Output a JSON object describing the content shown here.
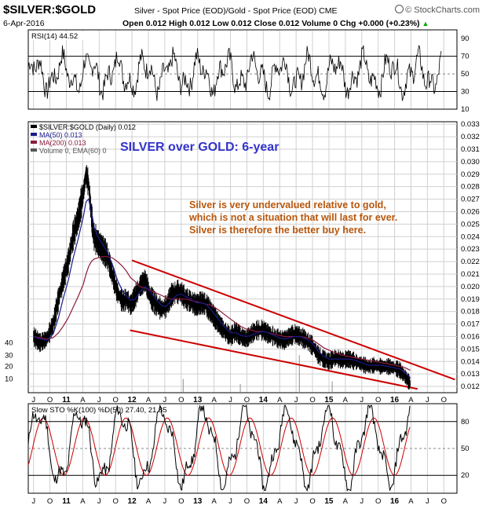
{
  "header": {
    "symbol": "$SILVER:$GOLD",
    "description": "Silver - Spot Price (EOD)/Gold - Spot Price (EOD) CME",
    "date": "6-Apr-2016",
    "ohlc": "Open 0.012  High 0.012  Low 0.012  Close 0.012  Volume 0  Chg +0.000 (+0.23%)",
    "ohlc_arrow": "▲",
    "brand": "© StockCharts.com"
  },
  "colors": {
    "price": "#000000",
    "ma50": "#1a1a8c",
    "ma200": "#8b1a3a",
    "trendline": "#cc0000",
    "annotation_title": "#3333cc",
    "annotation_body": "#b8560b",
    "volume": "#a0a0a0",
    "stoch_d": "#cc0000",
    "grid": "#d0d0d0"
  },
  "chart_data": [
    {
      "type": "line",
      "panel": "RSI",
      "legend": "RSI(14) 44.52",
      "ylim": [
        10,
        100
      ],
      "ticks": [
        10,
        30,
        50,
        70,
        90
      ],
      "reference_lines": [
        30,
        50,
        70
      ],
      "current": 44.52
    },
    {
      "type": "line",
      "panel": "price",
      "series": [
        {
          "name": "$SILVER:$GOLD (Daily) 0.012"
        },
        {
          "name": "MA(50) 0.013"
        },
        {
          "name": "MA(200) 0.013"
        },
        {
          "name": "Volume 0, EMA(60) 0"
        }
      ],
      "ylim": [
        0.0115,
        0.0332
      ],
      "right_ticks": [
        "0.033",
        "0.032",
        "0.031",
        "0.030",
        "0.029",
        "0.028",
        "0.027",
        "0.026",
        "0.025",
        "0.024",
        "0.023",
        "0.022",
        "0.021",
        "0.020",
        "0.019",
        "0.018",
        "0.017",
        "0.016",
        "0.015",
        "0.014",
        "0.013",
        "0.012"
      ],
      "left_ticks": [
        "40",
        "30",
        "20",
        "10"
      ],
      "x_tick_labels": [
        "J",
        "O",
        "11",
        "A",
        "J",
        "O",
        "12",
        "A",
        "J",
        "O",
        "13",
        "A",
        "J",
        "O",
        "14",
        "A",
        "J",
        "O",
        "15",
        "A",
        "J",
        "O",
        "16",
        "A",
        "J",
        "O"
      ],
      "x": [
        2010.5,
        2010.6,
        2010.7,
        2010.8,
        2010.88,
        2010.95,
        2011.03,
        2011.1,
        2011.18,
        2011.26,
        2011.3,
        2011.34,
        2011.38,
        2011.42,
        2011.48,
        2011.55,
        2011.62,
        2011.7,
        2011.78,
        2011.86,
        2011.92,
        2011.98,
        2012.05,
        2012.12,
        2012.2,
        2012.28,
        2012.36,
        2012.45,
        2012.52,
        2012.6,
        2012.68,
        2012.75,
        2012.82,
        2012.9,
        2012.98,
        2013.05,
        2013.12,
        2013.2,
        2013.3,
        2013.4,
        2013.5,
        2013.58,
        2013.66,
        2013.74,
        2013.82,
        2013.9,
        2014.0,
        2014.08,
        2014.16,
        2014.24,
        2014.32,
        2014.4,
        2014.48,
        2014.56,
        2014.66,
        2014.76,
        2014.84,
        2014.92,
        2015.0,
        2015.1,
        2015.2,
        2015.3,
        2015.4,
        2015.5,
        2015.6,
        2015.7,
        2015.8,
        2015.9,
        2016.0,
        2016.08,
        2016.16,
        2016.24
      ],
      "y": [
        0.016,
        0.0155,
        0.0158,
        0.017,
        0.019,
        0.0205,
        0.022,
        0.024,
        0.0255,
        0.0275,
        0.029,
        0.0282,
        0.0258,
        0.024,
        0.0235,
        0.023,
        0.0225,
        0.021,
        0.0195,
        0.0188,
        0.019,
        0.0185,
        0.0192,
        0.02,
        0.0205,
        0.0192,
        0.0186,
        0.0182,
        0.0184,
        0.0193,
        0.0196,
        0.0195,
        0.019,
        0.0188,
        0.0185,
        0.0187,
        0.0186,
        0.018,
        0.0172,
        0.0165,
        0.016,
        0.0164,
        0.016,
        0.0158,
        0.0162,
        0.0165,
        0.0165,
        0.0162,
        0.016,
        0.0158,
        0.0157,
        0.016,
        0.0162,
        0.016,
        0.0157,
        0.0152,
        0.0145,
        0.0142,
        0.014,
        0.0143,
        0.0141,
        0.0142,
        0.014,
        0.0138,
        0.0136,
        0.0137,
        0.0136,
        0.0136,
        0.0135,
        0.0133,
        0.0128,
        0.0122
      ],
      "ma50": [
        0.016,
        0.0158,
        0.0157,
        0.0162,
        0.0175,
        0.019,
        0.0205,
        0.0222,
        0.0238,
        0.0256,
        0.0268,
        0.027,
        0.026,
        0.0248,
        0.024,
        0.0234,
        0.0228,
        0.0218,
        0.0205,
        0.0196,
        0.0192,
        0.0189,
        0.019,
        0.0196,
        0.02,
        0.0196,
        0.019,
        0.0185,
        0.0184,
        0.0189,
        0.0193,
        0.0194,
        0.0192,
        0.019,
        0.0187,
        0.0187,
        0.0186,
        0.0182,
        0.0175,
        0.0168,
        0.0163,
        0.0163,
        0.0161,
        0.016,
        0.0161,
        0.0163,
        0.0164,
        0.0163,
        0.0161,
        0.0159,
        0.0158,
        0.0159,
        0.016,
        0.016,
        0.0158,
        0.0154,
        0.0148,
        0.0144,
        0.0142,
        0.0142,
        0.0142,
        0.0142,
        0.0141,
        0.0139,
        0.0137,
        0.0137,
        0.0137,
        0.0136,
        0.0135,
        0.0134,
        0.0131,
        0.0127
      ],
      "ma200": [
        0.016,
        0.0159,
        0.0158,
        0.0159,
        0.0163,
        0.0168,
        0.0175,
        0.0183,
        0.0192,
        0.0202,
        0.021,
        0.0216,
        0.022,
        0.0222,
        0.0223,
        0.0224,
        0.0224,
        0.0223,
        0.022,
        0.0216,
        0.0212,
        0.0207,
        0.0204,
        0.02,
        0.0199,
        0.0197,
        0.0195,
        0.0193,
        0.0191,
        0.019,
        0.019,
        0.019,
        0.019,
        0.0189,
        0.0188,
        0.0187,
        0.0186,
        0.0185,
        0.0182,
        0.0178,
        0.0174,
        0.0171,
        0.0168,
        0.0166,
        0.0165,
        0.0164,
        0.0164,
        0.0163,
        0.0162,
        0.0161,
        0.016,
        0.016,
        0.016,
        0.016,
        0.0159,
        0.0157,
        0.0154,
        0.0151,
        0.0149,
        0.0147,
        0.0145,
        0.0144,
        0.0143,
        0.0142,
        0.0141,
        0.014,
        0.0139,
        0.0138,
        0.0137,
        0.0136,
        0.0135,
        0.0133
      ],
      "trendlines": [
        {
          "x": [
            2012.0,
            2016.92
          ],
          "y": [
            0.0221,
            0.01255
          ]
        },
        {
          "x": [
            2011.97,
            2016.35
          ],
          "y": [
            0.0165,
            0.0118
          ]
        }
      ],
      "annotation_title": "SILVER over GOLD: 6-year",
      "annotation_lines": [
        "Silver is very undervalued relative to gold,",
        "which is not a situation that will last for ever.",
        "Silver is therefore the better buy here."
      ]
    },
    {
      "type": "line",
      "panel": "Slow Stochastic",
      "legend": "Slow STO %K(100) %D(50) 27.40, 21.85",
      "ylim": [
        0,
        100
      ],
      "ticks": [
        20,
        50,
        80
      ],
      "reference_lines": [
        20,
        50,
        80
      ],
      "current_k": 27.4,
      "current_d": 21.85
    }
  ]
}
